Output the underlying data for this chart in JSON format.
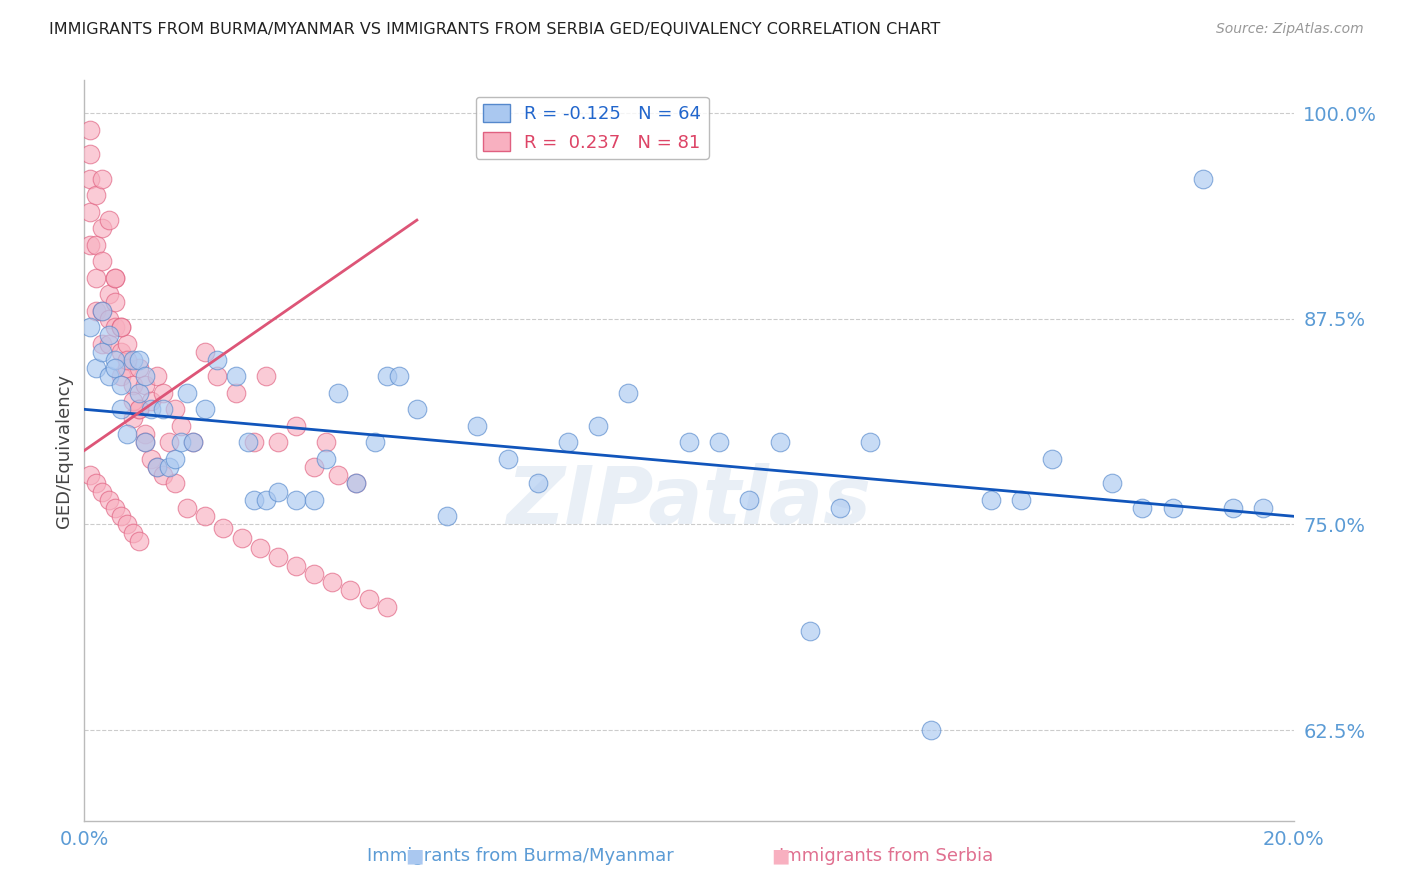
{
  "title": "IMMIGRANTS FROM BURMA/MYANMAR VS IMMIGRANTS FROM SERBIA GED/EQUIVALENCY CORRELATION CHART",
  "source": "Source: ZipAtlas.com",
  "ylabel": "GED/Equivalency",
  "xlim": [
    0.0,
    0.2
  ],
  "ylim": [
    0.57,
    1.02
  ],
  "yticks": [
    0.625,
    0.75,
    0.875,
    1.0
  ],
  "ytick_labels": [
    "62.5%",
    "75.0%",
    "87.5%",
    "100.0%"
  ],
  "xticks": [
    0.0,
    0.05,
    0.1,
    0.15,
    0.2
  ],
  "xtick_labels": [
    "0.0%",
    "",
    "",
    "",
    "20.0%"
  ],
  "grid_color": "#cccccc",
  "background_color": "#ffffff",
  "blue_fill": "#aac8f0",
  "blue_edge": "#5588cc",
  "pink_fill": "#f8b0c0",
  "pink_edge": "#e06080",
  "blue_line_color": "#1155bb",
  "pink_line_color": "#dd5577",
  "series1_label": "Immigrants from Burma/Myanmar",
  "series2_label": "Immigrants from Serbia",
  "R1": -0.125,
  "N1": 64,
  "R2": 0.237,
  "N2": 81,
  "watermark": "ZIPatlas",
  "blue_trend_x": [
    0.0,
    0.2
  ],
  "blue_trend_y": [
    0.82,
    0.755
  ],
  "pink_trend_x": [
    0.0,
    0.055
  ],
  "pink_trend_y": [
    0.795,
    0.935
  ],
  "blue_x": [
    0.001,
    0.002,
    0.003,
    0.003,
    0.004,
    0.004,
    0.005,
    0.005,
    0.006,
    0.006,
    0.007,
    0.008,
    0.009,
    0.009,
    0.01,
    0.01,
    0.011,
    0.012,
    0.013,
    0.014,
    0.015,
    0.016,
    0.017,
    0.018,
    0.02,
    0.022,
    0.025,
    0.027,
    0.028,
    0.03,
    0.032,
    0.035,
    0.038,
    0.04,
    0.042,
    0.045,
    0.05,
    0.055,
    0.06,
    0.065,
    0.07,
    0.08,
    0.09,
    0.1,
    0.11,
    0.12,
    0.13,
    0.14,
    0.15,
    0.155,
    0.16,
    0.17,
    0.175,
    0.18,
    0.185,
    0.19,
    0.105,
    0.115,
    0.125,
    0.048,
    0.052,
    0.075,
    0.085,
    0.195
  ],
  "blue_y": [
    0.87,
    0.845,
    0.88,
    0.855,
    0.84,
    0.865,
    0.85,
    0.845,
    0.835,
    0.82,
    0.805,
    0.85,
    0.83,
    0.85,
    0.8,
    0.84,
    0.82,
    0.785,
    0.82,
    0.785,
    0.79,
    0.8,
    0.83,
    0.8,
    0.82,
    0.85,
    0.84,
    0.8,
    0.765,
    0.765,
    0.77,
    0.765,
    0.765,
    0.79,
    0.83,
    0.775,
    0.84,
    0.82,
    0.755,
    0.81,
    0.79,
    0.8,
    0.83,
    0.8,
    0.765,
    0.685,
    0.8,
    0.625,
    0.765,
    0.765,
    0.79,
    0.775,
    0.76,
    0.76,
    0.96,
    0.76,
    0.8,
    0.8,
    0.76,
    0.8,
    0.84,
    0.775,
    0.81,
    0.76
  ],
  "pink_x": [
    0.001,
    0.001,
    0.001,
    0.001,
    0.001,
    0.002,
    0.002,
    0.002,
    0.002,
    0.003,
    0.003,
    0.003,
    0.003,
    0.004,
    0.004,
    0.004,
    0.005,
    0.005,
    0.005,
    0.006,
    0.006,
    0.006,
    0.007,
    0.007,
    0.008,
    0.008,
    0.009,
    0.009,
    0.01,
    0.01,
    0.011,
    0.012,
    0.013,
    0.014,
    0.015,
    0.016,
    0.018,
    0.02,
    0.022,
    0.025,
    0.028,
    0.03,
    0.032,
    0.035,
    0.038,
    0.04,
    0.003,
    0.004,
    0.005,
    0.006,
    0.007,
    0.008,
    0.009,
    0.01,
    0.011,
    0.012,
    0.013,
    0.015,
    0.017,
    0.02,
    0.023,
    0.026,
    0.029,
    0.032,
    0.035,
    0.038,
    0.041,
    0.044,
    0.047,
    0.05,
    0.001,
    0.002,
    0.003,
    0.004,
    0.005,
    0.006,
    0.007,
    0.008,
    0.009,
    0.042,
    0.045
  ],
  "pink_y": [
    0.975,
    0.99,
    0.96,
    0.94,
    0.92,
    0.95,
    0.92,
    0.9,
    0.88,
    0.93,
    0.91,
    0.88,
    0.86,
    0.89,
    0.875,
    0.86,
    0.9,
    0.885,
    0.87,
    0.855,
    0.87,
    0.84,
    0.845,
    0.86,
    0.835,
    0.815,
    0.845,
    0.82,
    0.805,
    0.835,
    0.825,
    0.84,
    0.83,
    0.8,
    0.82,
    0.81,
    0.8,
    0.855,
    0.84,
    0.83,
    0.8,
    0.84,
    0.8,
    0.81,
    0.785,
    0.8,
    0.96,
    0.935,
    0.9,
    0.87,
    0.85,
    0.825,
    0.82,
    0.8,
    0.79,
    0.785,
    0.78,
    0.775,
    0.76,
    0.755,
    0.748,
    0.742,
    0.736,
    0.73,
    0.725,
    0.72,
    0.715,
    0.71,
    0.705,
    0.7,
    0.78,
    0.775,
    0.77,
    0.765,
    0.76,
    0.755,
    0.75,
    0.745,
    0.74,
    0.78,
    0.775
  ]
}
